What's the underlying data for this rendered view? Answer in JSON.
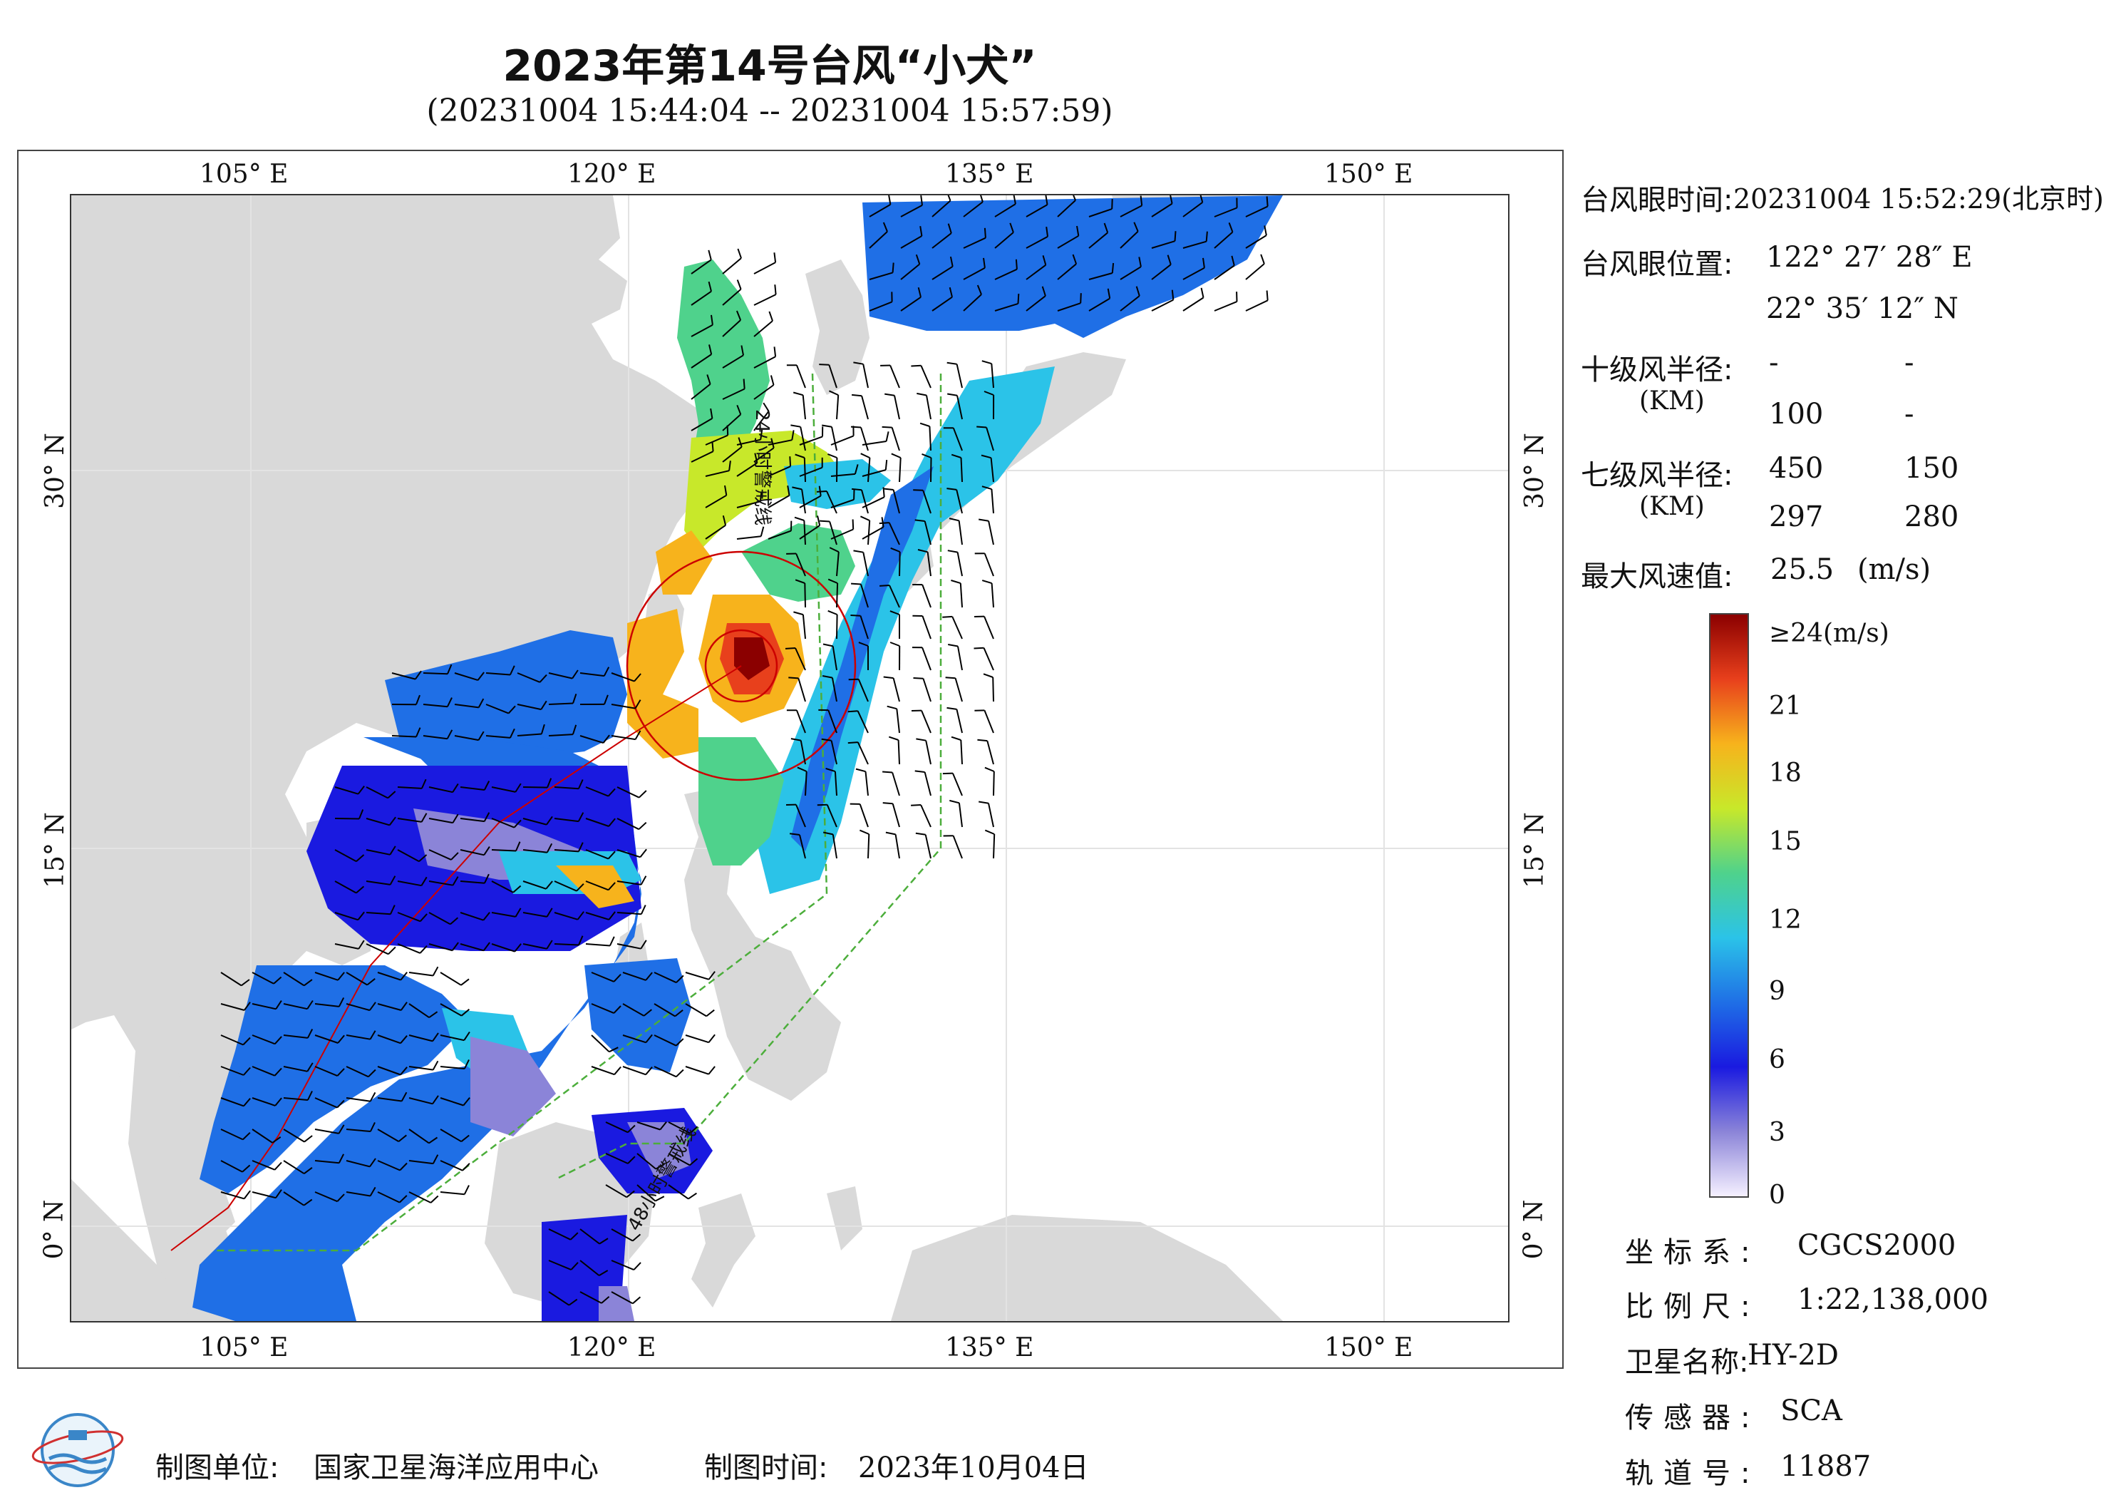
{
  "title": "2023年第14号台风“小犬”",
  "subtitle": "(20231004 15:44:04 -- 20231004 15:57:59)",
  "map": {
    "lon_ticks_top": [
      "105° E",
      "120° E",
      "135° E",
      "150° E"
    ],
    "lon_ticks_bottom": [
      "105° E",
      "120° E",
      "135° E",
      "150° E"
    ],
    "lat_ticks": [
      "30° N",
      "15° N",
      "0° N"
    ],
    "warning_24h_label": "24小时警戒线",
    "warning_48h_label": "48小时警戒线",
    "colors": {
      "land": "#d9d9d9",
      "sea": "#ffffff",
      "warning_line": "#4cae3b",
      "eye_circle": "#cc0000",
      "wind_barb": "#000000"
    }
  },
  "info": {
    "eye_time_label": "台风眼时间:",
    "eye_time_value": "20231004 15:52:29(北京时)",
    "eye_pos_label": "台风眼位置:",
    "eye_lon": "122° 27′ 28″ E",
    "eye_lat": "22° 35′ 12″ N",
    "r10_label": "十级风半径:",
    "r10_unit": "(KM)",
    "r10_values": [
      "-",
      "-",
      "100",
      "-"
    ],
    "r7_label": "七级风半径:",
    "r7_unit": "(KM)",
    "r7_values": [
      "450",
      "150",
      "297",
      "280"
    ],
    "max_wind_label": "最大风速值:",
    "max_wind_value": "25.5",
    "max_wind_unit": "(m/s)"
  },
  "colorbar": {
    "labels": [
      "≥24(m/s)",
      "21",
      "18",
      "15",
      "12",
      "9",
      "6",
      "3",
      "0"
    ],
    "range": [
      0,
      24
    ],
    "stops": [
      "#f5f0ff",
      "#8b84d8",
      "#1a1ae0",
      "#1f6fe6",
      "#2bc3e8",
      "#4fd28c",
      "#c8e82a",
      "#f7b31c",
      "#e8401c",
      "#8b0000"
    ]
  },
  "meta": {
    "coord_label": "坐标系:",
    "coord_value": "CGCS2000",
    "scale_label": "比例尺:",
    "scale_value": "1:22,138,000",
    "satellite_label": "卫星名称:",
    "satellite_value": "HY-2D",
    "sensor_label": "传感器:",
    "sensor_value": "SCA",
    "orbit_label": "轨道号:",
    "orbit_value": "11887"
  },
  "footer": {
    "unit_label": "制图单位:",
    "unit_value": "国家卫星海洋应用中心",
    "time_label": "制图时间:",
    "time_value": "2023年10月04日"
  }
}
